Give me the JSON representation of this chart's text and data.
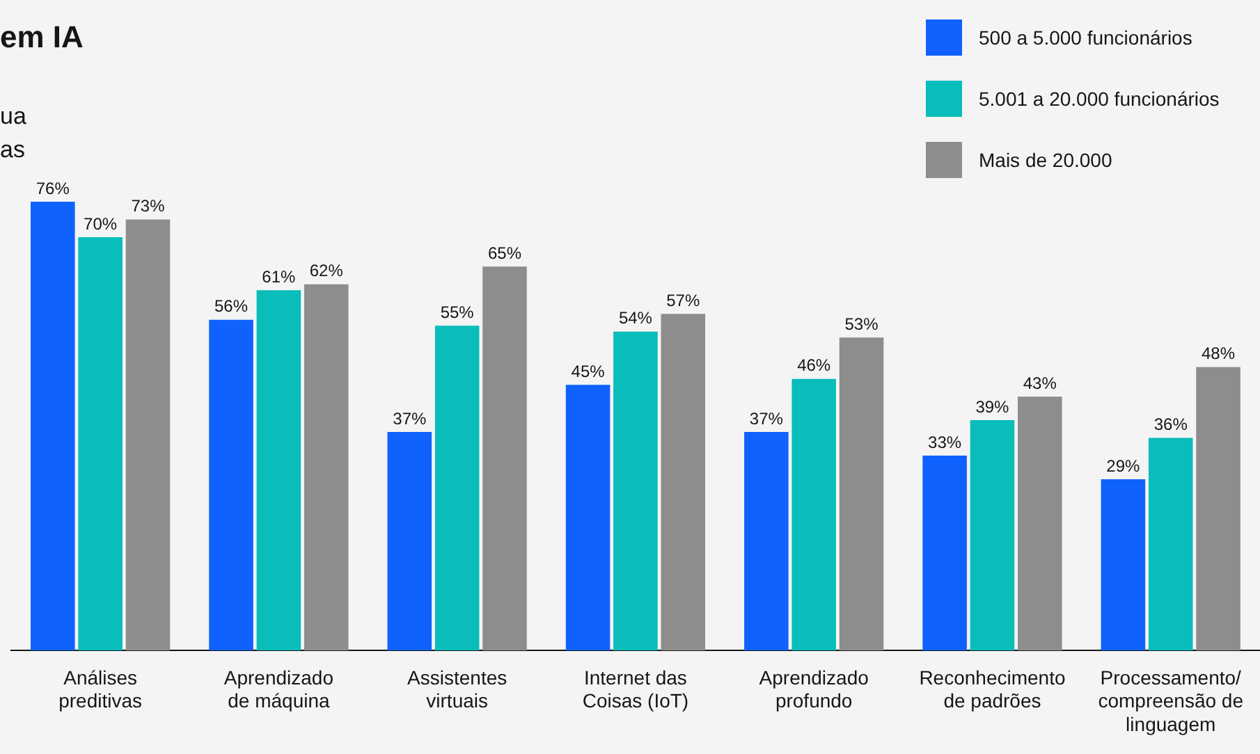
{
  "chart_data": {
    "type": "bar",
    "title": "em IA",
    "subtitle": "ua\nas",
    "categories": [
      "Análises\npreditivas",
      "Aprendizado\nde máquina",
      "Assistentes\nvirtuais",
      "Internet das\nCoisas (IoT)",
      "Aprendizado\nprofundo",
      "Reconhecimento\nde padrões",
      "Processamento/\ncompreensão de\nlinguagem"
    ],
    "series": [
      {
        "name": "500 a 5.000 funcionários",
        "color": "#0f62fe",
        "values": [
          76,
          56,
          37,
          45,
          37,
          33,
          29
        ],
        "value_labels": [
          "76%",
          "56%",
          "37%",
          "45%",
          "37%",
          "33%",
          "29%"
        ]
      },
      {
        "name": "5.001 a 20.000 funcionários",
        "color": "#08bdba",
        "values": [
          70,
          61,
          55,
          54,
          46,
          39,
          36
        ],
        "value_labels": [
          "70%",
          "61%",
          "55%",
          "54%",
          "46%",
          "39%",
          "36%"
        ]
      },
      {
        "name": "Mais de 20.000",
        "color": "#8d8d8d",
        "values": [
          73,
          62,
          65,
          57,
          53,
          43,
          48
        ],
        "value_labels": [
          "73%",
          "62%",
          "65%",
          "57%",
          "53%",
          "43%",
          "48%"
        ]
      }
    ],
    "legend": "top right",
    "grid": false
  }
}
